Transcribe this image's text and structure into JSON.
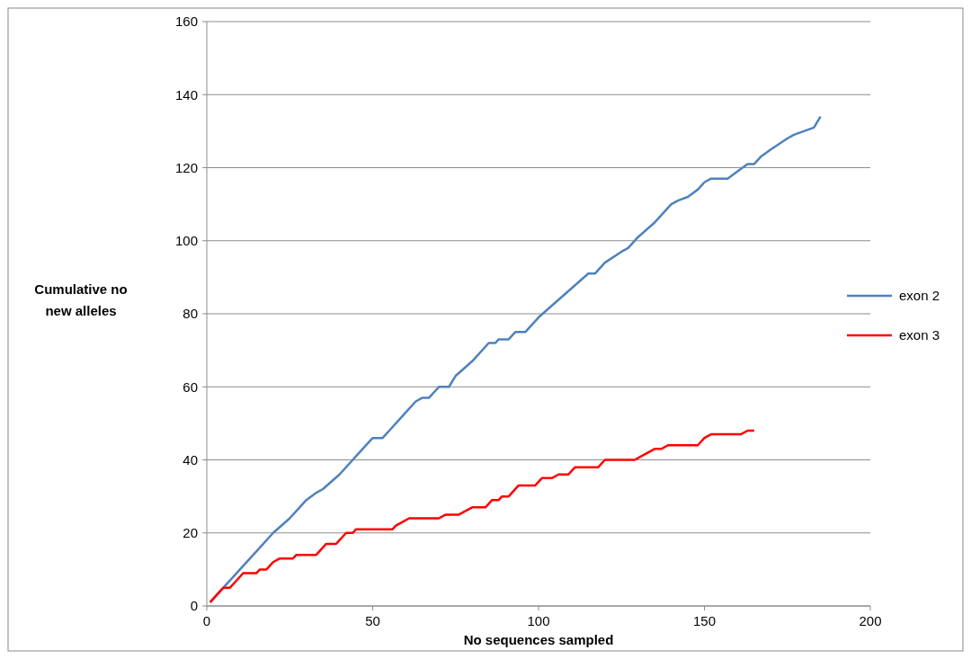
{
  "chart_data": {
    "type": "line",
    "xlabel": "No sequences sampled",
    "ylabel": "Cumulative no new alleles",
    "xlim": [
      0,
      200
    ],
    "xticks": [
      0,
      50,
      100,
      150,
      200
    ],
    "ylim": [
      0,
      160
    ],
    "yticks": [
      0,
      20,
      40,
      60,
      80,
      100,
      120,
      140,
      160
    ],
    "grid": "y",
    "legend": "right",
    "line_style": "solid",
    "marker": "none",
    "series": [
      {
        "name": "exon 2",
        "color": "#4f81bd",
        "x": [
          1,
          5,
          10,
          15,
          20,
          25,
          27,
          30,
          33,
          35,
          40,
          45,
          50,
          53,
          55,
          60,
          63,
          65,
          67,
          70,
          73,
          75,
          80,
          85,
          87,
          88,
          91,
          93,
          96,
          100,
          105,
          110,
          115,
          117,
          120,
          125,
          127,
          130,
          135,
          137,
          140,
          142,
          145,
          148,
          150,
          152,
          157,
          160,
          163,
          165,
          167,
          170,
          175,
          177,
          180,
          183,
          185
        ],
        "values": [
          1,
          5,
          10,
          15,
          20,
          24,
          26,
          29,
          31,
          32,
          36,
          41,
          46,
          46,
          48,
          53,
          56,
          57,
          57,
          60,
          60,
          63,
          67,
          72,
          72,
          73,
          73,
          75,
          75,
          79,
          83,
          87,
          91,
          91,
          94,
          97,
          98,
          101,
          105,
          107,
          110,
          111,
          112,
          114,
          116,
          117,
          117,
          119,
          121,
          121,
          123,
          125,
          128,
          129,
          130,
          131,
          134
        ]
      },
      {
        "name": "exon 3",
        "color": "#ff0000",
        "x": [
          1,
          5,
          7,
          10,
          11,
          15,
          16,
          18,
          20,
          22,
          26,
          27,
          33,
          36,
          39,
          42,
          44,
          45,
          56,
          57,
          59,
          61,
          70,
          72,
          76,
          78,
          80,
          84,
          86,
          88,
          89,
          91,
          94,
          99,
          101,
          104,
          106,
          109,
          111,
          118,
          120,
          129,
          131,
          133,
          135,
          137,
          139,
          148,
          150,
          152,
          161,
          163,
          165
        ],
        "values": [
          1,
          5,
          5,
          8,
          9,
          9,
          10,
          10,
          12,
          13,
          13,
          14,
          14,
          17,
          17,
          20,
          20,
          21,
          21,
          22,
          23,
          24,
          24,
          25,
          25,
          26,
          27,
          27,
          29,
          29,
          30,
          30,
          33,
          33,
          35,
          35,
          36,
          36,
          38,
          38,
          40,
          40,
          41,
          42,
          43,
          43,
          44,
          44,
          46,
          47,
          47,
          48,
          48
        ]
      }
    ]
  }
}
